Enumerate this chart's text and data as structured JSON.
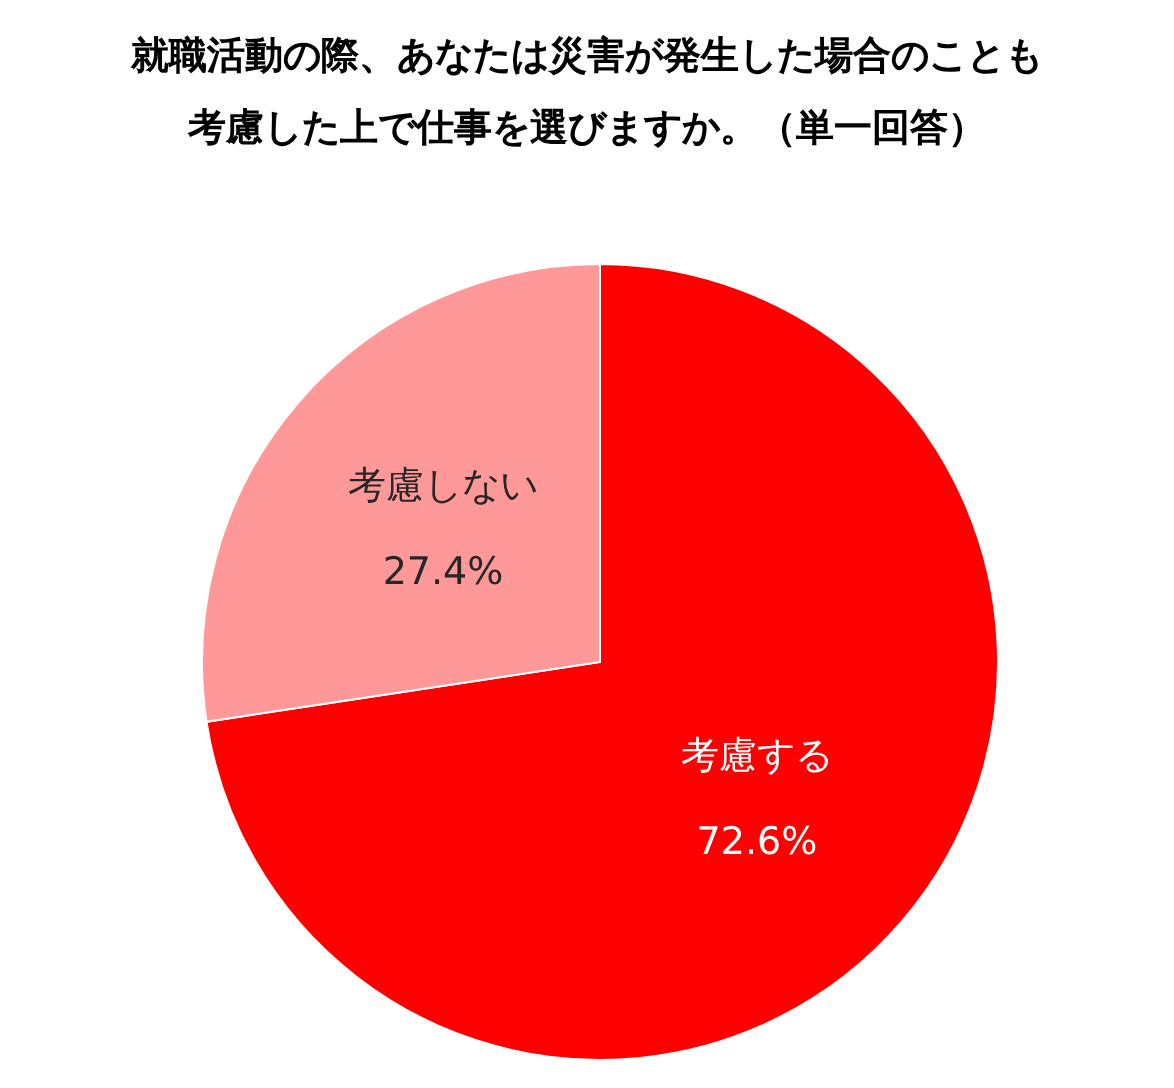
{
  "chart_data": {
    "type": "pie",
    "title": "就職活動の際、あなたは災害が発生した場合のことも考慮した上で仕事を選びますか。（単一回答）",
    "categories": [
      "考慮する",
      "考慮しない"
    ],
    "values": [
      72.6,
      27.4
    ],
    "value_labels": [
      "72.6%",
      "27.4%"
    ],
    "colors": [
      "#ff0000",
      "#ff9999"
    ],
    "legend": false
  }
}
